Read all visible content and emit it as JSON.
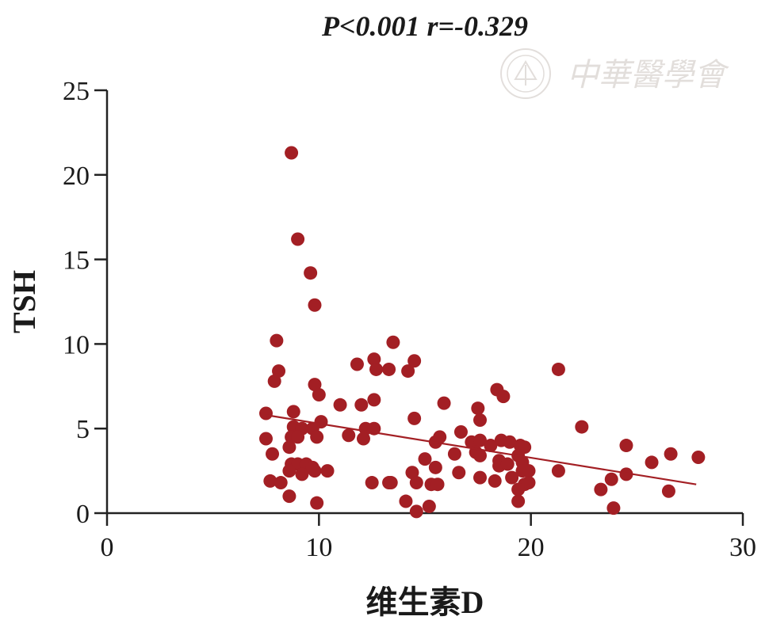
{
  "chart_data": {
    "type": "scatter",
    "title": "P<0.001 r=-0.329",
    "xlabel": "维生素D",
    "ylabel": "TSH",
    "xlim": [
      0,
      30
    ],
    "ylim": [
      0,
      25
    ],
    "xticks": [
      0,
      10,
      20,
      30
    ],
    "yticks": [
      0,
      5,
      10,
      15,
      20,
      25
    ],
    "watermark_text": "中華醫學會",
    "point_color": "#a31f24",
    "line_color": "#a31f24",
    "trendline": {
      "x": [
        7.5,
        27.8
      ],
      "y": [
        5.8,
        1.7
      ]
    },
    "points": [
      [
        8.7,
        21.3
      ],
      [
        9.0,
        16.2
      ],
      [
        9.6,
        14.2
      ],
      [
        9.8,
        12.3
      ],
      [
        8.0,
        10.2
      ],
      [
        13.5,
        10.1
      ],
      [
        8.1,
        8.4
      ],
      [
        7.9,
        7.8
      ],
      [
        9.8,
        7.6
      ],
      [
        10.0,
        7.0
      ],
      [
        11.8,
        8.8
      ],
      [
        12.6,
        9.1
      ],
      [
        12.7,
        8.5
      ],
      [
        13.3,
        8.5
      ],
      [
        14.2,
        8.4
      ],
      [
        14.5,
        9.0
      ],
      [
        21.3,
        8.5
      ],
      [
        18.4,
        7.3
      ],
      [
        18.7,
        6.9
      ],
      [
        12.6,
        6.7
      ],
      [
        12.0,
        6.4
      ],
      [
        11.0,
        6.4
      ],
      [
        7.5,
        5.9
      ],
      [
        8.8,
        6.0
      ],
      [
        10.1,
        5.4
      ],
      [
        14.5,
        5.6
      ],
      [
        15.9,
        6.5
      ],
      [
        17.5,
        6.2
      ],
      [
        17.6,
        5.5
      ],
      [
        22.4,
        5.1
      ],
      [
        8.8,
        5.1
      ],
      [
        9.2,
        5.0
      ],
      [
        9.7,
        5.0
      ],
      [
        12.2,
        5.0
      ],
      [
        12.6,
        5.0
      ],
      [
        7.5,
        4.4
      ],
      [
        8.7,
        4.5
      ],
      [
        9.0,
        4.5
      ],
      [
        9.9,
        4.5
      ],
      [
        11.4,
        4.6
      ],
      [
        12.1,
        4.4
      ],
      [
        15.5,
        4.2
      ],
      [
        15.7,
        4.5
      ],
      [
        16.7,
        4.8
      ],
      [
        17.2,
        4.2
      ],
      [
        17.6,
        4.3
      ],
      [
        18.1,
        4.0
      ],
      [
        18.6,
        4.3
      ],
      [
        19.0,
        4.2
      ],
      [
        19.5,
        4.0
      ],
      [
        19.7,
        3.9
      ],
      [
        24.5,
        4.0
      ],
      [
        8.6,
        3.9
      ],
      [
        7.8,
        3.5
      ],
      [
        16.4,
        3.5
      ],
      [
        17.4,
        3.6
      ],
      [
        17.6,
        3.4
      ],
      [
        19.4,
        3.4
      ],
      [
        19.6,
        3.0
      ],
      [
        15.0,
        3.2
      ],
      [
        18.5,
        3.1
      ],
      [
        25.7,
        3.0
      ],
      [
        26.6,
        3.5
      ],
      [
        27.9,
        3.3
      ],
      [
        8.7,
        2.9
      ],
      [
        9.0,
        2.9
      ],
      [
        9.4,
        2.9
      ],
      [
        9.7,
        2.7
      ],
      [
        8.6,
        2.5
      ],
      [
        9.2,
        2.3
      ],
      [
        9.8,
        2.5
      ],
      [
        10.4,
        2.5
      ],
      [
        15.5,
        2.7
      ],
      [
        18.5,
        2.8
      ],
      [
        18.9,
        2.9
      ],
      [
        19.6,
        2.5
      ],
      [
        19.9,
        2.5
      ],
      [
        21.3,
        2.5
      ],
      [
        24.5,
        2.3
      ],
      [
        14.4,
        2.4
      ],
      [
        16.6,
        2.4
      ],
      [
        7.7,
        1.9
      ],
      [
        8.2,
        1.8
      ],
      [
        12.5,
        1.8
      ],
      [
        13.3,
        1.8
      ],
      [
        13.4,
        1.8
      ],
      [
        14.6,
        1.8
      ],
      [
        15.3,
        1.7
      ],
      [
        15.6,
        1.7
      ],
      [
        17.6,
        2.1
      ],
      [
        18.3,
        1.9
      ],
      [
        19.1,
        2.1
      ],
      [
        19.7,
        1.7
      ],
      [
        19.9,
        1.8
      ],
      [
        23.8,
        2.0
      ],
      [
        8.6,
        1.0
      ],
      [
        23.3,
        1.4
      ],
      [
        26.5,
        1.3
      ],
      [
        19.4,
        1.4
      ],
      [
        9.9,
        0.6
      ],
      [
        14.1,
        0.7
      ],
      [
        15.2,
        0.4
      ],
      [
        19.4,
        0.7
      ],
      [
        14.6,
        0.1
      ],
      [
        23.9,
        0.3
      ]
    ]
  }
}
